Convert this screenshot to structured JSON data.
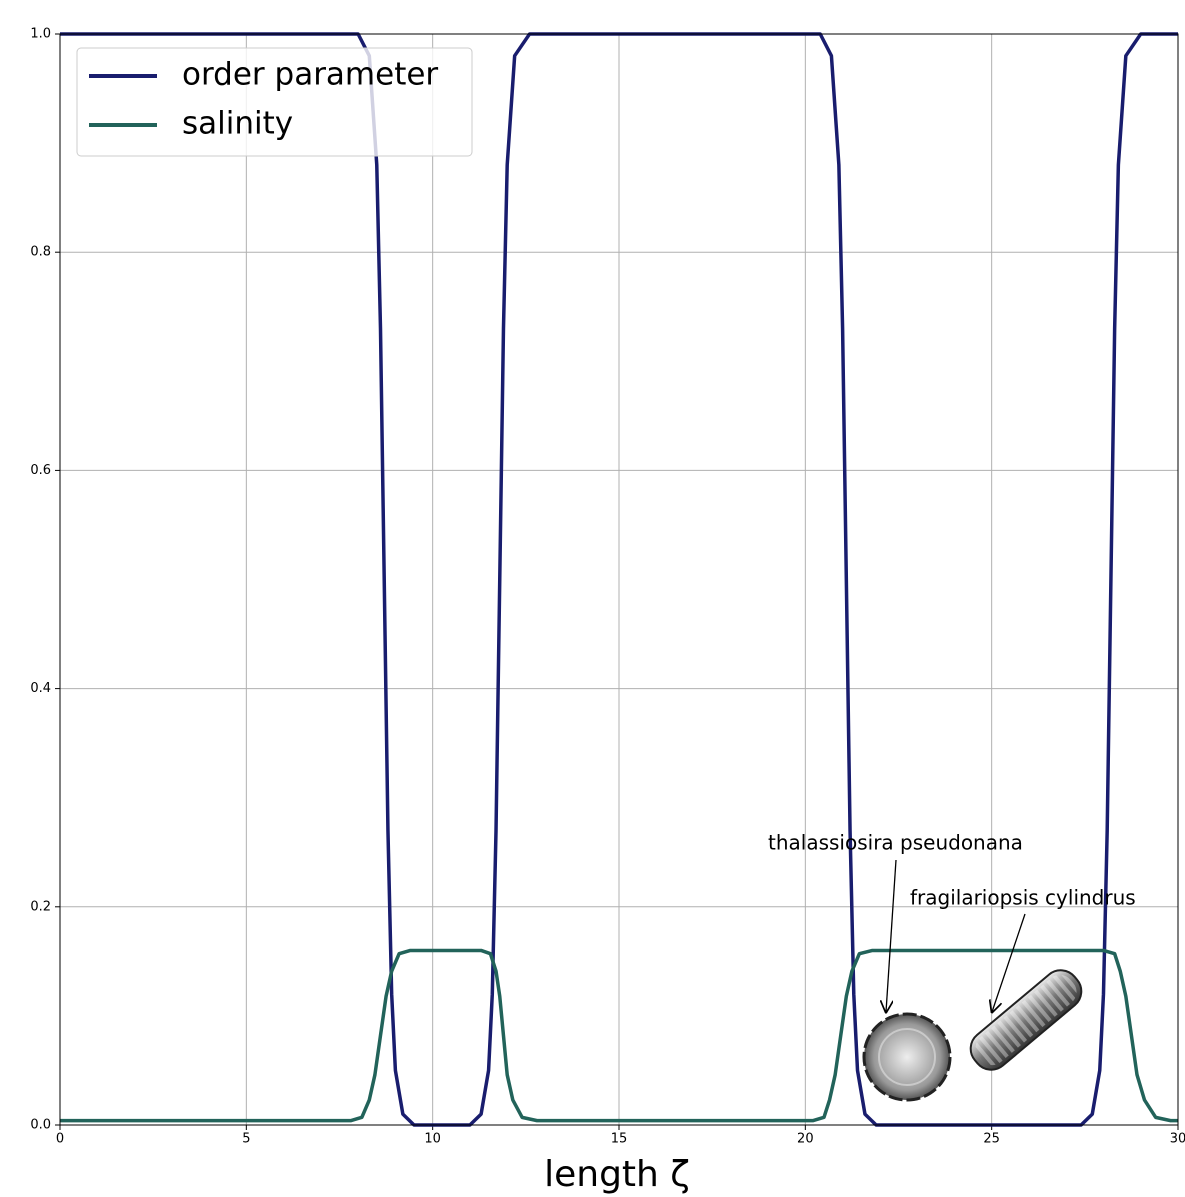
{
  "chart_data": {
    "type": "line",
    "x_label": "length ζ",
    "xlim": [
      0,
      30
    ],
    "ylim": [
      0,
      1
    ],
    "xticks": [
      0,
      5,
      10,
      15,
      20,
      25,
      30
    ],
    "yticks": [
      {
        "value": 0,
        "label": "0.0"
      },
      0.2,
      0.4,
      0.6,
      0.8,
      {
        "value": 1,
        "label": "1.0"
      }
    ],
    "grid": true,
    "legend": "upper left",
    "series": [
      {
        "name": "order parameter",
        "color": "#191d6e",
        "x": [
          0,
          8.0,
          8.3,
          8.5,
          8.6,
          8.7,
          8.8,
          8.9,
          9.0,
          9.2,
          9.5,
          11.0,
          11.3,
          11.5,
          11.6,
          11.7,
          11.8,
          11.9,
          12.0,
          12.2,
          12.6,
          20.4,
          20.7,
          20.9,
          21.0,
          21.1,
          21.2,
          21.3,
          21.4,
          21.6,
          21.9,
          27.4,
          27.7,
          27.9,
          28.0,
          28.1,
          28.2,
          28.3,
          28.4,
          28.6,
          29.0,
          30
        ],
        "values": [
          1,
          1,
          0.98,
          0.88,
          0.73,
          0.5,
          0.27,
          0.12,
          0.05,
          0.01,
          0,
          0,
          0.01,
          0.05,
          0.12,
          0.27,
          0.5,
          0.73,
          0.88,
          0.98,
          1,
          1,
          0.98,
          0.88,
          0.73,
          0.5,
          0.27,
          0.12,
          0.05,
          0.01,
          0,
          0,
          0.01,
          0.05,
          0.12,
          0.27,
          0.5,
          0.73,
          0.88,
          0.98,
          1,
          1
        ]
      },
      {
        "name": "salinity",
        "color": "#22635a",
        "x": [
          0,
          7.8,
          8.1,
          8.3,
          8.45,
          8.6,
          8.75,
          8.9,
          9.1,
          9.4,
          11.3,
          11.55,
          11.7,
          11.8,
          11.9,
          12.0,
          12.15,
          12.4,
          12.8,
          20.2,
          20.5,
          20.65,
          20.8,
          20.95,
          21.1,
          21.25,
          21.45,
          21.8,
          28.0,
          28.3,
          28.45,
          28.6,
          28.75,
          28.9,
          29.1,
          29.4,
          29.8,
          30
        ],
        "values": [
          0.004,
          0.004,
          0.007,
          0.023,
          0.046,
          0.082,
          0.118,
          0.141,
          0.157,
          0.16,
          0.16,
          0.157,
          0.141,
          0.118,
          0.082,
          0.046,
          0.023,
          0.007,
          0.004,
          0.004,
          0.007,
          0.023,
          0.046,
          0.082,
          0.118,
          0.141,
          0.157,
          0.16,
          0.16,
          0.157,
          0.141,
          0.118,
          0.082,
          0.046,
          0.023,
          0.007,
          0.004,
          0.004
        ]
      }
    ],
    "annotations": [
      "thalassiosira pseudonana",
      "fragilariopsis cylindrus"
    ]
  }
}
